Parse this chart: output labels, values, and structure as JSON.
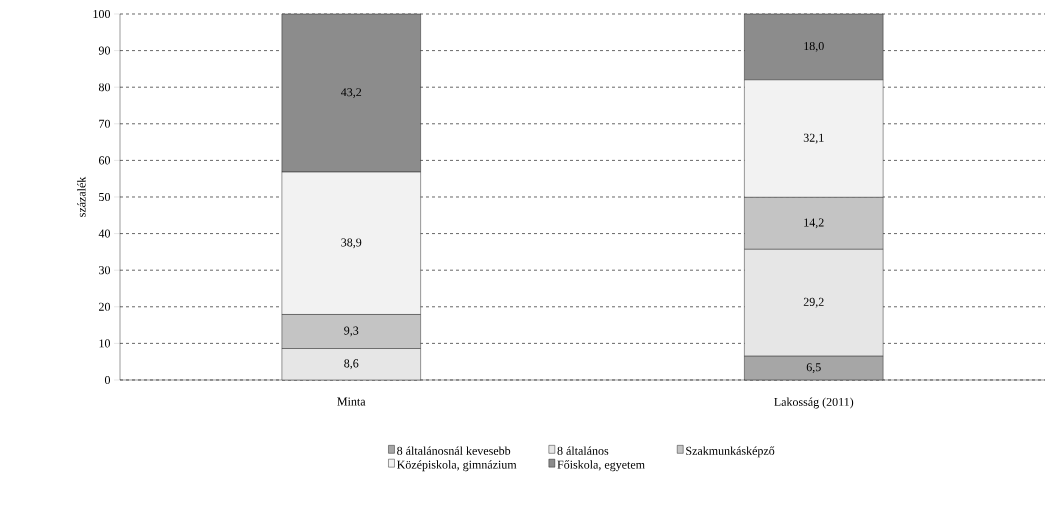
{
  "chart_data": {
    "type": "bar",
    "stacked": true,
    "ylabel": "százalék",
    "categories": [
      "Minta",
      "Lakosság (2011)"
    ],
    "series": [
      {
        "name": "8 általánosnál kevesebb",
        "color": "#a6a6a6",
        "values": [
          0,
          6.5
        ],
        "value_labels": [
          null,
          "6,5"
        ]
      },
      {
        "name": "8 általános",
        "color": "#e6e6e6",
        "values": [
          8.6,
          29.2
        ],
        "value_labels": [
          "8,6",
          "29,2"
        ]
      },
      {
        "name": "Szakmunkásképző",
        "color": "#c4c4c4",
        "values": [
          9.3,
          14.2
        ],
        "value_labels": [
          "9,3",
          "14,2"
        ]
      },
      {
        "name": "Középiskola, gimnázium",
        "color": "#f2f2f2",
        "values": [
          38.9,
          32.1
        ],
        "value_labels": [
          "38,9",
          "32,1"
        ]
      },
      {
        "name": "Főiskola, egyetem",
        "color": "#8c8c8c",
        "values": [
          43.2,
          18.0
        ],
        "value_labels": [
          "43,2",
          "18,0"
        ]
      }
    ],
    "ylim": [
      0,
      100
    ],
    "yticks": [
      0,
      10,
      20,
      30,
      40,
      50,
      60,
      70,
      80,
      90,
      100
    ],
    "grid": "y",
    "legend": "bottom"
  }
}
